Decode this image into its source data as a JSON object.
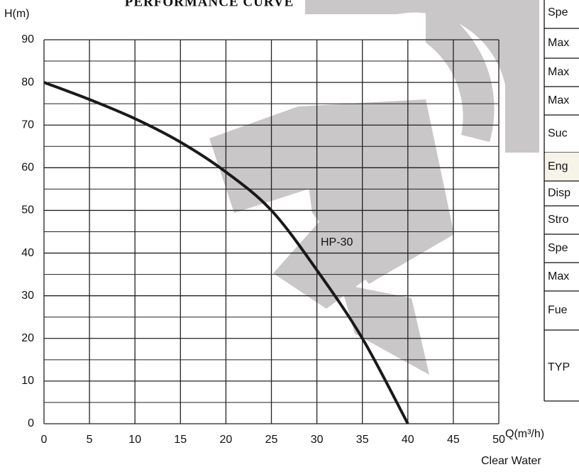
{
  "chart_data": {
    "type": "line",
    "title": "PERFORMANCE CURVE",
    "ylabel": "H(m)",
    "xlabel": "Q(m³/h)",
    "note": "Clear Water",
    "x": [
      0,
      5,
      10,
      15,
      20,
      25,
      30,
      35,
      40
    ],
    "series": [
      {
        "name": "HP-30",
        "color": "#1a1a1a",
        "values": [
          80,
          76,
          71.5,
          66,
          59,
          50,
          36,
          20,
          0
        ]
      }
    ],
    "xlim": [
      0,
      50
    ],
    "xticks": [
      0,
      5,
      10,
      15,
      20,
      25,
      30,
      35,
      40,
      45,
      50
    ],
    "ylim": [
      0,
      90
    ],
    "yticks": [
      0,
      10,
      20,
      30,
      40,
      50,
      60,
      70,
      80,
      90
    ],
    "yminor": [
      5,
      15,
      25,
      35,
      45,
      55,
      65,
      75,
      85
    ],
    "grid": true
  },
  "table": {
    "rows": [
      "Spe",
      "Max",
      "Max",
      "Max",
      "Suc",
      "Eng",
      "Disp",
      "Stro",
      "Spe",
      "Max",
      "Fue",
      "TYP"
    ],
    "highlight_row": 5
  }
}
